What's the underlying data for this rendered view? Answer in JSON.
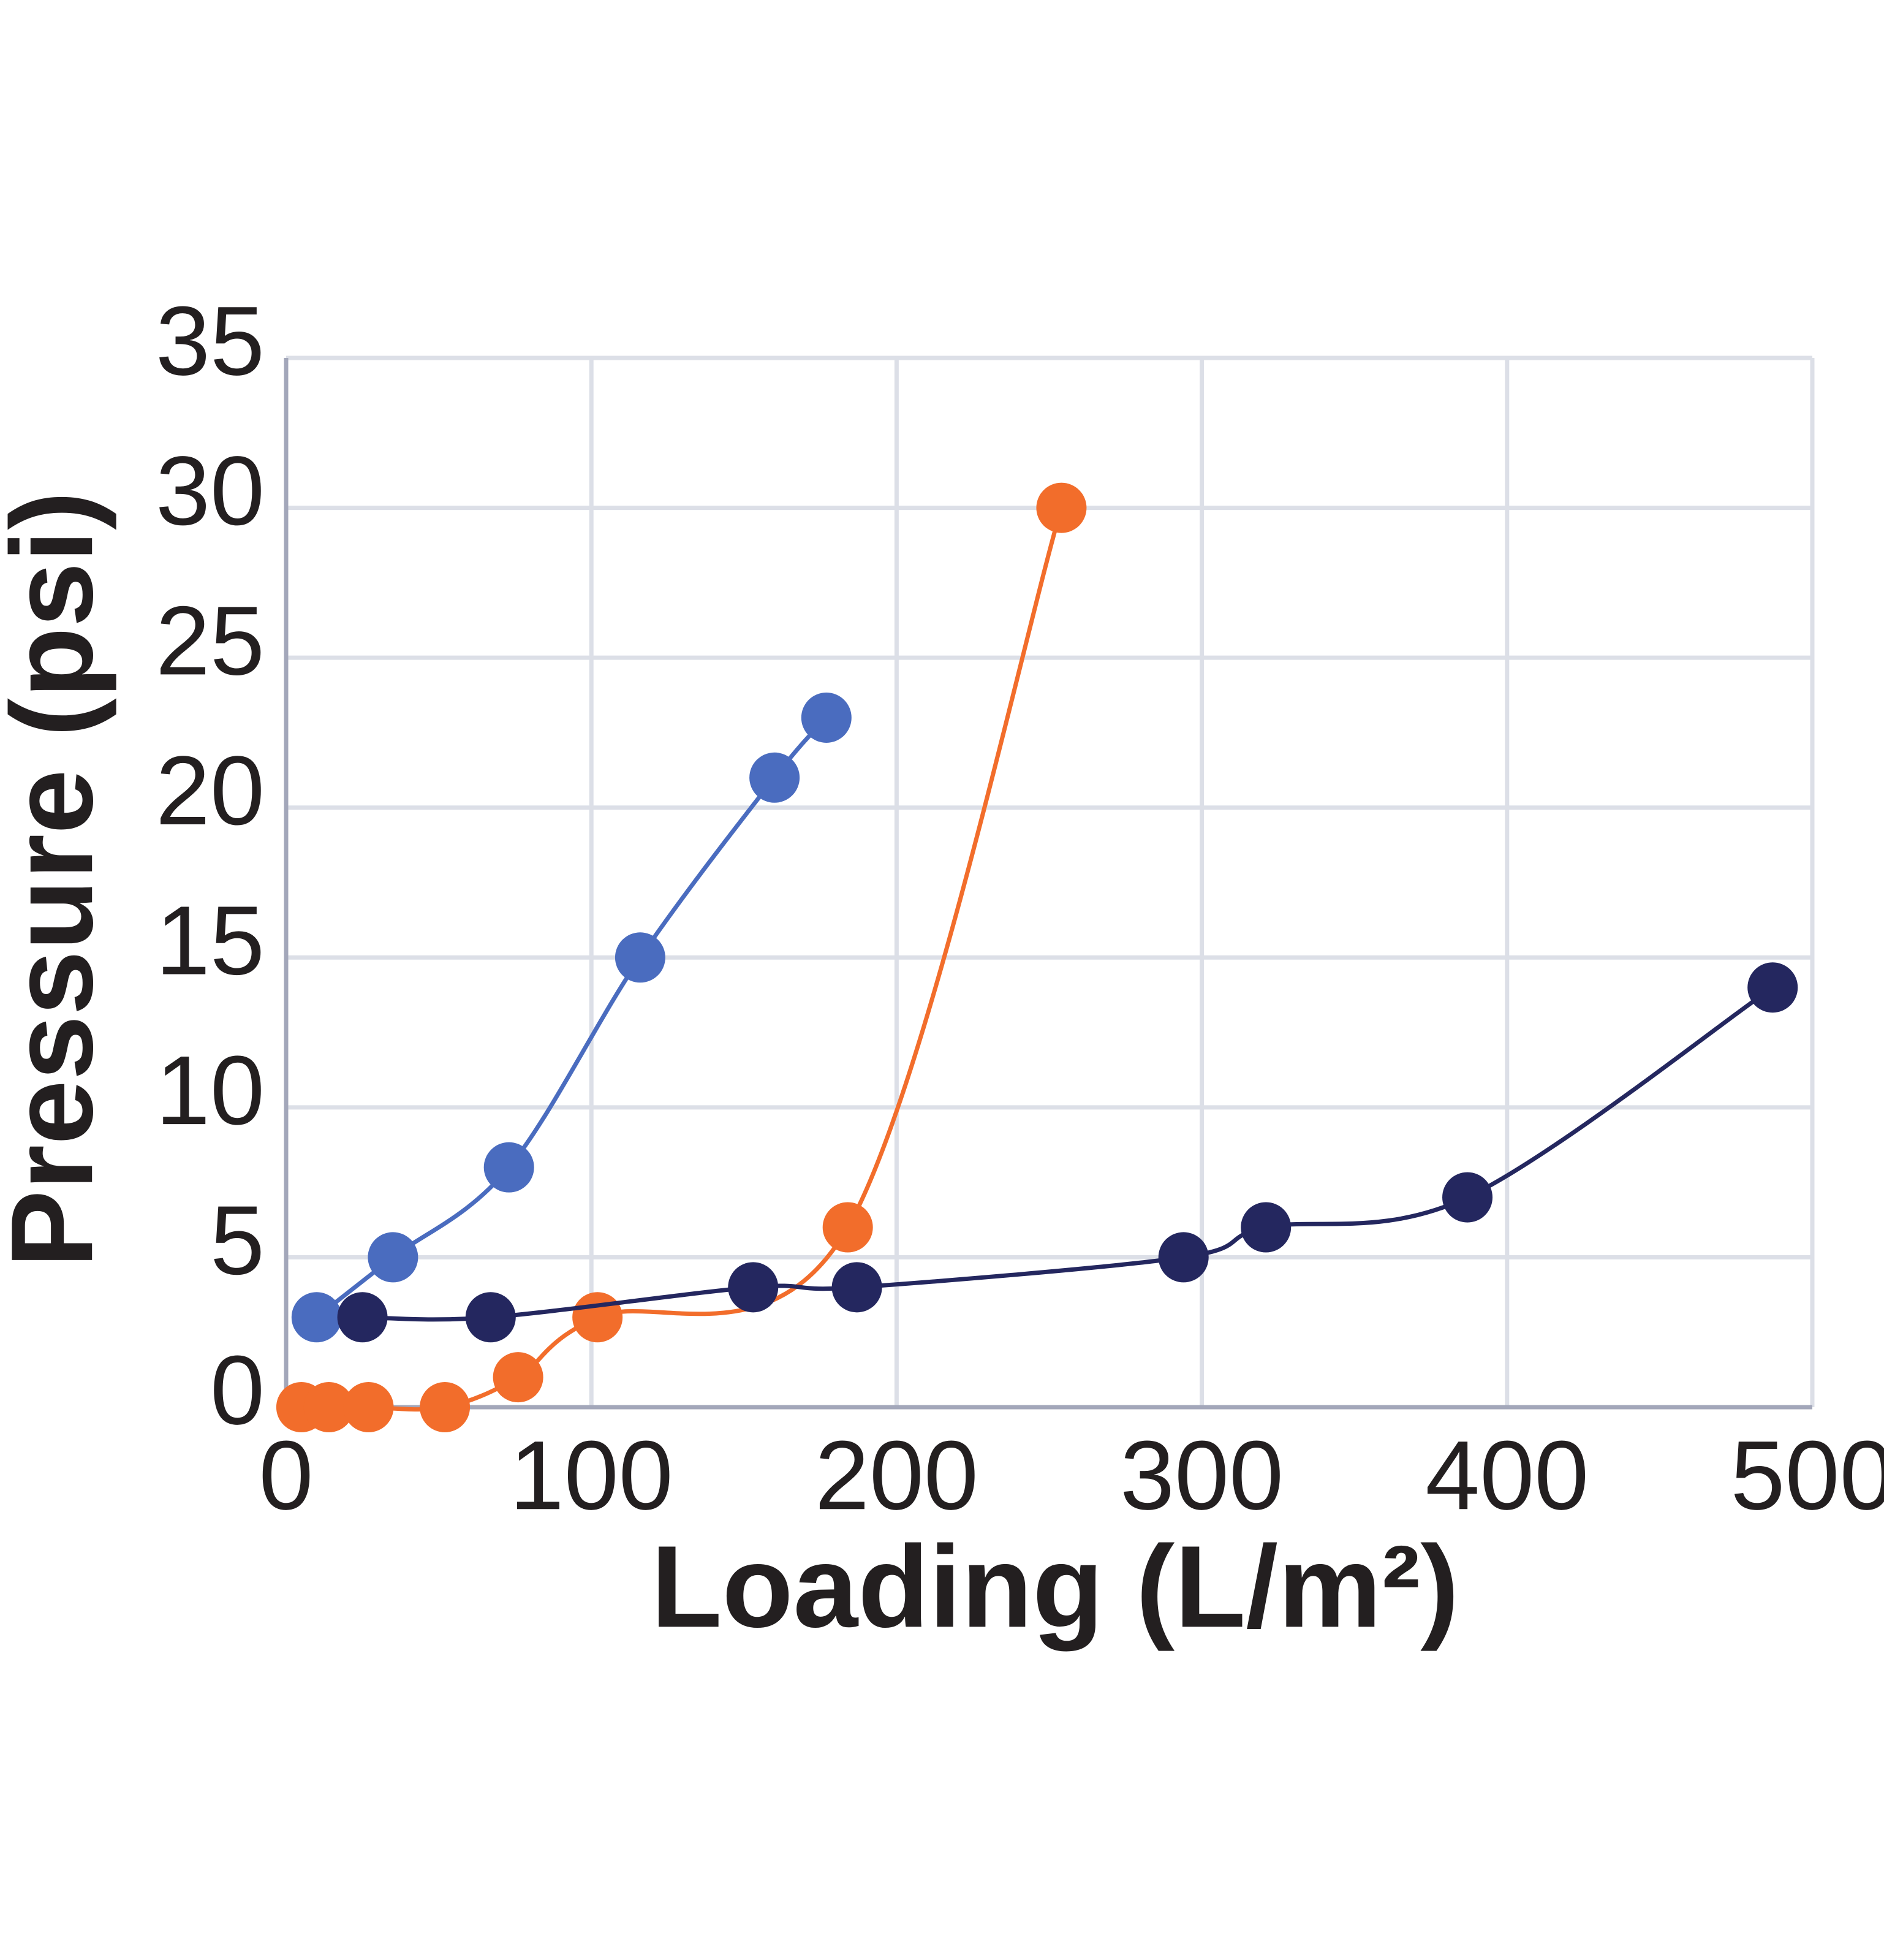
{
  "chart_data": {
    "type": "line",
    "x_label": "Loading (L/m²)",
    "y_label": "Pressure (psi)",
    "xlim": [
      0,
      500
    ],
    "xticks": [
      0,
      100,
      200,
      300,
      400,
      500
    ],
    "ylim": [
      0,
      35
    ],
    "yticks": [
      0,
      5,
      10,
      15,
      20,
      25,
      30,
      35
    ],
    "grid": true,
    "series": [
      {
        "color": "#4a6cbf",
        "x": [
          10,
          35,
          73,
          116,
          160,
          177
        ],
        "values": [
          3,
          5,
          8,
          15,
          21,
          23
        ]
      },
      {
        "color": "#f26d2b",
        "x": [
          5,
          14,
          27,
          52,
          76,
          102,
          184,
          254
        ],
        "values": [
          0,
          0,
          0,
          0,
          1,
          3,
          6,
          30
        ]
      },
      {
        "color": "#24275f",
        "x": [
          25,
          67,
          153,
          187,
          294,
          321,
          387,
          487
        ],
        "values": [
          3,
          3,
          4,
          4,
          5,
          6,
          7,
          14
        ]
      }
    ]
  }
}
